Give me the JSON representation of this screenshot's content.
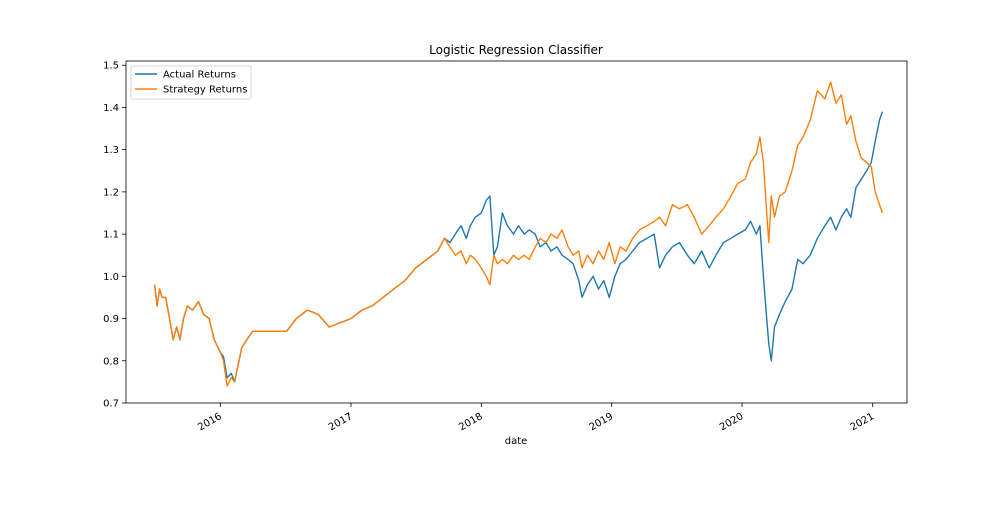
{
  "chart_data": {
    "type": "line",
    "title": "Logistic Regression Classifier",
    "xlabel": "date",
    "ylabel": "",
    "x_ticks": [
      "2016",
      "2017",
      "2018",
      "2019",
      "2020",
      "2021"
    ],
    "y_ticks": [
      "0.7",
      "0.8",
      "0.9",
      "1.0",
      "1.1",
      "1.2",
      "1.3",
      "1.4",
      "1.5"
    ],
    "xlim": [
      "2015-04-12",
      "2021-04-07"
    ],
    "ylim": [
      0.7,
      1.51
    ],
    "legend_position": "top-left",
    "grid": false,
    "series": [
      {
        "name": "Actual Returns",
        "color": "#1f77b4",
        "points": [
          [
            "2015-07-01",
            0.98
          ],
          [
            "2015-07-08",
            0.93
          ],
          [
            "2015-07-15",
            0.97
          ],
          [
            "2015-07-22",
            0.95
          ],
          [
            "2015-08-01",
            0.95
          ],
          [
            "2015-08-12",
            0.9
          ],
          [
            "2015-08-22",
            0.85
          ],
          [
            "2015-09-01",
            0.88
          ],
          [
            "2015-09-10",
            0.85
          ],
          [
            "2015-09-20",
            0.9
          ],
          [
            "2015-10-01",
            0.93
          ],
          [
            "2015-10-15",
            0.92
          ],
          [
            "2015-11-01",
            0.94
          ],
          [
            "2015-11-15",
            0.91
          ],
          [
            "2015-12-01",
            0.9
          ],
          [
            "2015-12-15",
            0.85
          ],
          [
            "2016-01-01",
            0.82
          ],
          [
            "2016-01-10",
            0.81
          ],
          [
            "2016-01-20",
            0.76
          ],
          [
            "2016-02-01",
            0.77
          ],
          [
            "2016-02-10",
            0.75
          ],
          [
            "2016-02-20",
            0.79
          ],
          [
            "2016-03-01",
            0.83
          ],
          [
            "2016-03-15",
            0.85
          ],
          [
            "2016-04-01",
            0.87
          ],
          [
            "2016-05-01",
            0.87
          ],
          [
            "2016-06-01",
            0.87
          ],
          [
            "2016-07-05",
            0.87
          ],
          [
            "2016-08-01",
            0.9
          ],
          [
            "2016-09-01",
            0.92
          ],
          [
            "2016-10-01",
            0.91
          ],
          [
            "2016-11-01",
            0.88
          ],
          [
            "2016-12-01",
            0.89
          ],
          [
            "2017-01-01",
            0.9
          ],
          [
            "2017-02-01",
            0.92
          ],
          [
            "2017-03-01",
            0.93
          ],
          [
            "2017-04-01",
            0.95
          ],
          [
            "2017-05-01",
            0.97
          ],
          [
            "2017-06-01",
            0.99
          ],
          [
            "2017-07-01",
            1.02
          ],
          [
            "2017-08-01",
            1.04
          ],
          [
            "2017-09-01",
            1.06
          ],
          [
            "2017-09-20",
            1.09
          ],
          [
            "2017-10-05",
            1.08
          ],
          [
            "2017-10-20",
            1.1
          ],
          [
            "2017-11-05",
            1.12
          ],
          [
            "2017-11-20",
            1.09
          ],
          [
            "2017-12-01",
            1.12
          ],
          [
            "2017-12-15",
            1.14
          ],
          [
            "2018-01-01",
            1.15
          ],
          [
            "2018-01-15",
            1.18
          ],
          [
            "2018-01-25",
            1.19
          ],
          [
            "2018-02-05",
            1.05
          ],
          [
            "2018-02-15",
            1.07
          ],
          [
            "2018-03-01",
            1.15
          ],
          [
            "2018-03-15",
            1.12
          ],
          [
            "2018-04-01",
            1.1
          ],
          [
            "2018-04-15",
            1.12
          ],
          [
            "2018-05-01",
            1.1
          ],
          [
            "2018-05-15",
            1.11
          ],
          [
            "2018-06-01",
            1.1
          ],
          [
            "2018-06-15",
            1.07
          ],
          [
            "2018-07-01",
            1.08
          ],
          [
            "2018-07-15",
            1.06
          ],
          [
            "2018-08-01",
            1.07
          ],
          [
            "2018-08-15",
            1.05
          ],
          [
            "2018-09-01",
            1.04
          ],
          [
            "2018-09-15",
            1.03
          ],
          [
            "2018-10-01",
            0.99
          ],
          [
            "2018-10-10",
            0.95
          ],
          [
            "2018-10-25",
            0.98
          ],
          [
            "2018-11-10",
            1.0
          ],
          [
            "2018-11-25",
            0.97
          ],
          [
            "2018-12-10",
            0.99
          ],
          [
            "2018-12-25",
            0.95
          ],
          [
            "2019-01-10",
            1.0
          ],
          [
            "2019-01-25",
            1.03
          ],
          [
            "2019-02-10",
            1.04
          ],
          [
            "2019-03-01",
            1.06
          ],
          [
            "2019-03-20",
            1.08
          ],
          [
            "2019-04-10",
            1.09
          ],
          [
            "2019-04-30",
            1.1
          ],
          [
            "2019-05-15",
            1.02
          ],
          [
            "2019-06-01",
            1.05
          ],
          [
            "2019-06-20",
            1.07
          ],
          [
            "2019-07-10",
            1.08
          ],
          [
            "2019-08-01",
            1.05
          ],
          [
            "2019-08-20",
            1.03
          ],
          [
            "2019-09-10",
            1.06
          ],
          [
            "2019-10-01",
            1.02
          ],
          [
            "2019-10-20",
            1.05
          ],
          [
            "2019-11-10",
            1.08
          ],
          [
            "2019-12-01",
            1.09
          ],
          [
            "2019-12-20",
            1.1
          ],
          [
            "2020-01-10",
            1.11
          ],
          [
            "2020-01-25",
            1.13
          ],
          [
            "2020-02-10",
            1.1
          ],
          [
            "2020-02-20",
            1.12
          ],
          [
            "2020-03-01",
            1.0
          ],
          [
            "2020-03-10",
            0.9
          ],
          [
            "2020-03-16",
            0.84
          ],
          [
            "2020-03-23",
            0.8
          ],
          [
            "2020-04-01",
            0.88
          ],
          [
            "2020-04-15",
            0.91
          ],
          [
            "2020-05-01",
            0.94
          ],
          [
            "2020-05-20",
            0.97
          ],
          [
            "2020-06-05",
            1.04
          ],
          [
            "2020-06-20",
            1.03
          ],
          [
            "2020-07-10",
            1.05
          ],
          [
            "2020-07-30",
            1.09
          ],
          [
            "2020-08-20",
            1.12
          ],
          [
            "2020-09-05",
            1.14
          ],
          [
            "2020-09-20",
            1.11
          ],
          [
            "2020-10-05",
            1.14
          ],
          [
            "2020-10-20",
            1.16
          ],
          [
            "2020-11-01",
            1.14
          ],
          [
            "2020-11-15",
            1.21
          ],
          [
            "2020-11-30",
            1.23
          ],
          [
            "2020-12-15",
            1.25
          ],
          [
            "2020-12-28",
            1.27
          ],
          [
            "2021-01-08",
            1.32
          ],
          [
            "2021-01-20",
            1.37
          ],
          [
            "2021-01-28",
            1.39
          ]
        ]
      },
      {
        "name": "Strategy Returns",
        "color": "#ff7f0e",
        "points": [
          [
            "2015-07-01",
            0.98
          ],
          [
            "2015-07-08",
            0.93
          ],
          [
            "2015-07-15",
            0.97
          ],
          [
            "2015-07-22",
            0.95
          ],
          [
            "2015-08-01",
            0.95
          ],
          [
            "2015-08-12",
            0.9
          ],
          [
            "2015-08-22",
            0.85
          ],
          [
            "2015-09-01",
            0.88
          ],
          [
            "2015-09-10",
            0.85
          ],
          [
            "2015-09-20",
            0.9
          ],
          [
            "2015-10-01",
            0.93
          ],
          [
            "2015-10-15",
            0.92
          ],
          [
            "2015-11-01",
            0.94
          ],
          [
            "2015-11-15",
            0.91
          ],
          [
            "2015-12-01",
            0.9
          ],
          [
            "2015-12-15",
            0.85
          ],
          [
            "2016-01-01",
            0.82
          ],
          [
            "2016-01-10",
            0.8
          ],
          [
            "2016-01-20",
            0.74
          ],
          [
            "2016-02-01",
            0.76
          ],
          [
            "2016-02-10",
            0.75
          ],
          [
            "2016-02-20",
            0.79
          ],
          [
            "2016-03-01",
            0.83
          ],
          [
            "2016-03-15",
            0.85
          ],
          [
            "2016-04-01",
            0.87
          ],
          [
            "2016-05-01",
            0.87
          ],
          [
            "2016-06-01",
            0.87
          ],
          [
            "2016-07-05",
            0.87
          ],
          [
            "2016-08-01",
            0.9
          ],
          [
            "2016-09-01",
            0.92
          ],
          [
            "2016-10-01",
            0.91
          ],
          [
            "2016-11-01",
            0.88
          ],
          [
            "2016-12-01",
            0.89
          ],
          [
            "2017-01-01",
            0.9
          ],
          [
            "2017-02-01",
            0.92
          ],
          [
            "2017-03-01",
            0.93
          ],
          [
            "2017-04-01",
            0.95
          ],
          [
            "2017-05-01",
            0.97
          ],
          [
            "2017-06-01",
            0.99
          ],
          [
            "2017-07-01",
            1.02
          ],
          [
            "2017-08-01",
            1.04
          ],
          [
            "2017-09-01",
            1.06
          ],
          [
            "2017-09-20",
            1.09
          ],
          [
            "2017-10-05",
            1.07
          ],
          [
            "2017-10-20",
            1.05
          ],
          [
            "2017-11-05",
            1.06
          ],
          [
            "2017-11-20",
            1.03
          ],
          [
            "2017-12-01",
            1.05
          ],
          [
            "2017-12-15",
            1.04
          ],
          [
            "2018-01-01",
            1.02
          ],
          [
            "2018-01-15",
            1.0
          ],
          [
            "2018-01-25",
            0.98
          ],
          [
            "2018-02-05",
            1.05
          ],
          [
            "2018-02-15",
            1.03
          ],
          [
            "2018-03-01",
            1.04
          ],
          [
            "2018-03-15",
            1.03
          ],
          [
            "2018-04-01",
            1.05
          ],
          [
            "2018-04-15",
            1.04
          ],
          [
            "2018-05-01",
            1.05
          ],
          [
            "2018-05-15",
            1.04
          ],
          [
            "2018-06-01",
            1.07
          ],
          [
            "2018-06-15",
            1.09
          ],
          [
            "2018-07-01",
            1.08
          ],
          [
            "2018-07-15",
            1.1
          ],
          [
            "2018-08-01",
            1.09
          ],
          [
            "2018-08-15",
            1.11
          ],
          [
            "2018-09-01",
            1.07
          ],
          [
            "2018-09-15",
            1.05
          ],
          [
            "2018-10-01",
            1.06
          ],
          [
            "2018-10-10",
            1.02
          ],
          [
            "2018-10-25",
            1.05
          ],
          [
            "2018-11-10",
            1.03
          ],
          [
            "2018-11-25",
            1.06
          ],
          [
            "2018-12-10",
            1.04
          ],
          [
            "2018-12-25",
            1.08
          ],
          [
            "2019-01-10",
            1.03
          ],
          [
            "2019-01-25",
            1.07
          ],
          [
            "2019-02-10",
            1.06
          ],
          [
            "2019-03-01",
            1.09
          ],
          [
            "2019-03-20",
            1.11
          ],
          [
            "2019-04-10",
            1.12
          ],
          [
            "2019-04-30",
            1.13
          ],
          [
            "2019-05-15",
            1.14
          ],
          [
            "2019-06-01",
            1.12
          ],
          [
            "2019-06-20",
            1.17
          ],
          [
            "2019-07-10",
            1.16
          ],
          [
            "2019-08-01",
            1.17
          ],
          [
            "2019-08-20",
            1.14
          ],
          [
            "2019-09-10",
            1.1
          ],
          [
            "2019-10-01",
            1.12
          ],
          [
            "2019-10-20",
            1.14
          ],
          [
            "2019-11-10",
            1.16
          ],
          [
            "2019-12-01",
            1.19
          ],
          [
            "2019-12-20",
            1.22
          ],
          [
            "2020-01-10",
            1.23
          ],
          [
            "2020-01-25",
            1.27
          ],
          [
            "2020-02-10",
            1.29
          ],
          [
            "2020-02-20",
            1.33
          ],
          [
            "2020-03-01",
            1.27
          ],
          [
            "2020-03-10",
            1.15
          ],
          [
            "2020-03-16",
            1.08
          ],
          [
            "2020-03-23",
            1.19
          ],
          [
            "2020-04-01",
            1.14
          ],
          [
            "2020-04-15",
            1.19
          ],
          [
            "2020-05-01",
            1.2
          ],
          [
            "2020-05-20",
            1.25
          ],
          [
            "2020-06-05",
            1.31
          ],
          [
            "2020-06-20",
            1.33
          ],
          [
            "2020-07-10",
            1.37
          ],
          [
            "2020-07-30",
            1.44
          ],
          [
            "2020-08-20",
            1.42
          ],
          [
            "2020-09-05",
            1.46
          ],
          [
            "2020-09-20",
            1.41
          ],
          [
            "2020-10-05",
            1.43
          ],
          [
            "2020-10-20",
            1.36
          ],
          [
            "2020-11-01",
            1.38
          ],
          [
            "2020-11-15",
            1.32
          ],
          [
            "2020-11-30",
            1.28
          ],
          [
            "2020-12-15",
            1.27
          ],
          [
            "2020-12-28",
            1.26
          ],
          [
            "2021-01-08",
            1.2
          ],
          [
            "2021-01-20",
            1.17
          ],
          [
            "2021-01-28",
            1.15
          ]
        ]
      }
    ]
  }
}
